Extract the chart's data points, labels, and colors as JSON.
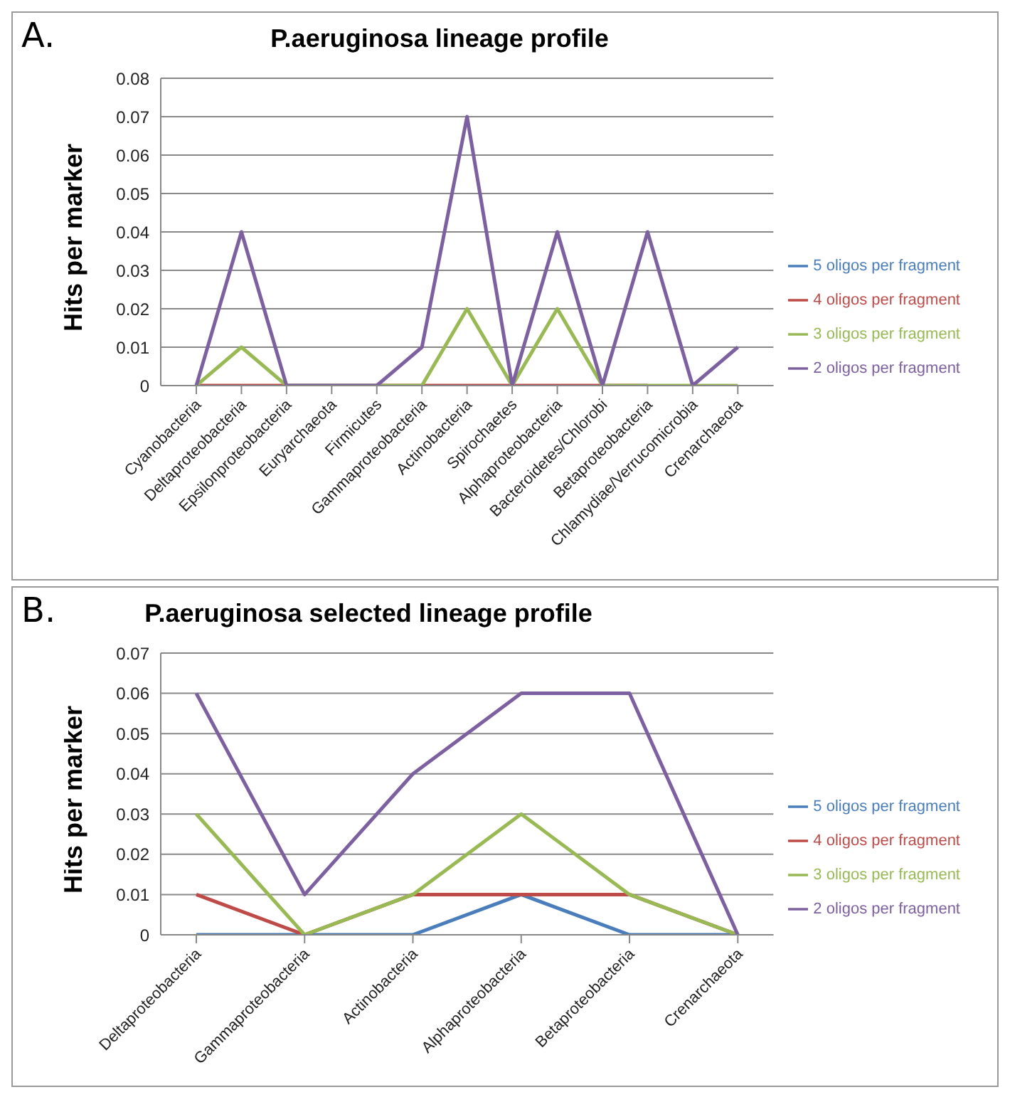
{
  "chart_data": [
    {
      "type": "line",
      "title": "P.aeruginosa  lineage profile",
      "ylabel": "Hits per marker",
      "annotations": [
        "A."
      ],
      "categories": [
        "Cyanobacteria",
        "Deltaproteobacteria",
        "Epsilonproteobacteria",
        "Euryarchaeota",
        "Firmicutes",
        "Gammaproteobacteria",
        "Actinobacteria",
        "Spirochaetes",
        "Alphaproteobacteria",
        "Bacteroidetes/Chlorobi",
        "Betaproteobacteria",
        "Chlamydiae/Verrucomicrobia",
        "Crenarchaeota"
      ],
      "series": [
        {
          "name": "5 oligos per fragment",
          "color": "#4a7ebb",
          "values": [
            null,
            null,
            null,
            null,
            null,
            null,
            null,
            null,
            null,
            null,
            null,
            null,
            null
          ]
        },
        {
          "name": "4 oligos per fragment",
          "color": "#be4b48",
          "values": [
            0,
            0,
            0,
            0,
            0,
            0,
            0,
            0,
            0,
            0,
            0,
            null,
            null
          ]
        },
        {
          "name": "3 oligos per fragment",
          "color": "#98b954",
          "values": [
            0,
            0.01,
            0,
            0,
            0,
            0,
            0.02,
            0,
            0.02,
            0,
            0,
            0,
            0
          ]
        },
        {
          "name": "2 oligos per fragment",
          "color": "#7d60a0",
          "values": [
            0,
            0.04,
            0,
            0,
            0,
            0.01,
            0.07,
            0,
            0.04,
            0,
            0.04,
            0,
            0.01
          ]
        }
      ],
      "ylim": [
        0,
        0.08
      ],
      "yticks": [
        0,
        0.01,
        0.02,
        0.03,
        0.04,
        0.05,
        0.06,
        0.07,
        0.08
      ],
      "grid": "y",
      "legend": "right",
      "marker": "none",
      "line_style": "solid"
    },
    {
      "type": "line",
      "title": "P.aeruginosa selected lineage profile",
      "ylabel": "Hits per marker",
      "annotations": [
        "B."
      ],
      "categories": [
        "Deltaproteobacteria",
        "Gammaproteobacteria",
        "Actinobacteria",
        "Alphaproteobacteria",
        "Betaproteobacteria",
        "Crenarchaeota"
      ],
      "series": [
        {
          "name": "5 oligos per fragment",
          "color": "#4a7ebb",
          "values": [
            0,
            0,
            0,
            0.01,
            0,
            0
          ]
        },
        {
          "name": "4 oligos per fragment",
          "color": "#be4b48",
          "values": [
            0.01,
            0,
            0.01,
            0.01,
            0.01,
            0
          ]
        },
        {
          "name": "3 oligos per fragment",
          "color": "#98b954",
          "values": [
            0.03,
            0,
            0.01,
            0.03,
            0.01,
            0
          ]
        },
        {
          "name": "2 oligos per fragment",
          "color": "#7d60a0",
          "values": [
            0.06,
            0.01,
            0.04,
            0.06,
            0.06,
            0
          ]
        }
      ],
      "ylim": [
        0,
        0.07
      ],
      "yticks": [
        0,
        0.01,
        0.02,
        0.03,
        0.04,
        0.05,
        0.06,
        0.07
      ],
      "grid": "y",
      "legend": "right",
      "marker": "none",
      "line_style": "solid"
    }
  ]
}
